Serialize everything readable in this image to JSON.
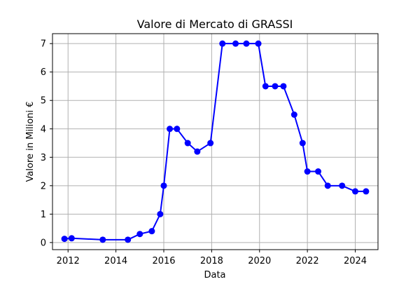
{
  "chart_data": {
    "type": "line",
    "title": "Valore di Mercato di GRASSI",
    "xlabel": "Data",
    "ylabel": "Valore in Milioni €",
    "xlim": [
      2011.35,
      2024.95
    ],
    "ylim": [
      -0.25,
      7.35
    ],
    "xticks": [
      2012,
      2014,
      2016,
      2018,
      2020,
      2022,
      2024
    ],
    "yticks": [
      0,
      1,
      2,
      3,
      4,
      5,
      6,
      7
    ],
    "grid": true,
    "series": [
      {
        "color": "#0000ff",
        "marker": "circle",
        "points": [
          {
            "x": 2011.85,
            "y": 0.13
          },
          {
            "x": 2012.15,
            "y": 0.15
          },
          {
            "x": 2013.45,
            "y": 0.1
          },
          {
            "x": 2014.5,
            "y": 0.1
          },
          {
            "x": 2015.0,
            "y": 0.3
          },
          {
            "x": 2015.5,
            "y": 0.4
          },
          {
            "x": 2015.85,
            "y": 1.0
          },
          {
            "x": 2016.0,
            "y": 2.0
          },
          {
            "x": 2016.25,
            "y": 4.0
          },
          {
            "x": 2016.55,
            "y": 4.0
          },
          {
            "x": 2017.0,
            "y": 3.5
          },
          {
            "x": 2017.4,
            "y": 3.2
          },
          {
            "x": 2017.95,
            "y": 3.5
          },
          {
            "x": 2018.45,
            "y": 7.0
          },
          {
            "x": 2019.0,
            "y": 7.0
          },
          {
            "x": 2019.45,
            "y": 7.0
          },
          {
            "x": 2019.95,
            "y": 7.0
          },
          {
            "x": 2020.25,
            "y": 5.5
          },
          {
            "x": 2020.65,
            "y": 5.5
          },
          {
            "x": 2021.0,
            "y": 5.5
          },
          {
            "x": 2021.45,
            "y": 4.5
          },
          {
            "x": 2021.8,
            "y": 3.5
          },
          {
            "x": 2022.0,
            "y": 2.5
          },
          {
            "x": 2022.45,
            "y": 2.5
          },
          {
            "x": 2022.85,
            "y": 2.0
          },
          {
            "x": 2023.45,
            "y": 2.0
          },
          {
            "x": 2024.0,
            "y": 1.8
          },
          {
            "x": 2024.45,
            "y": 1.8
          }
        ]
      }
    ]
  }
}
